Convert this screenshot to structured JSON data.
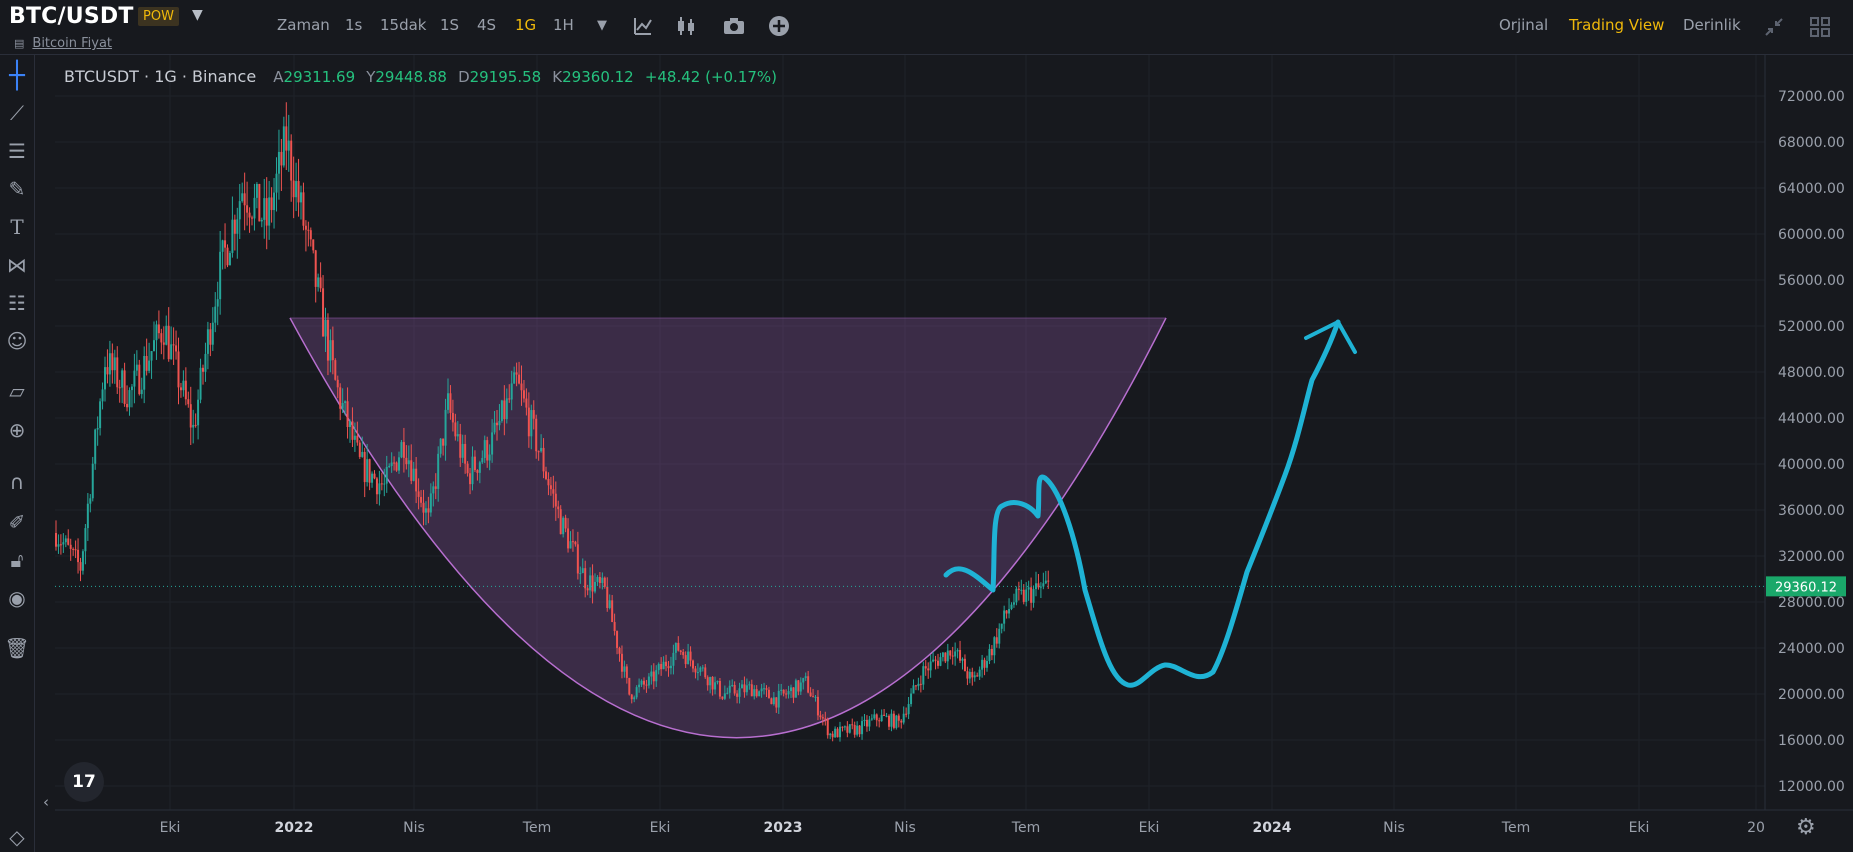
{
  "header": {
    "pair": "BTC/USDT",
    "badge": "POW",
    "subtitle": "Bitcoin Fiyat"
  },
  "intervals": [
    {
      "label": "Zaman",
      "active": false
    },
    {
      "label": "1s",
      "active": false
    },
    {
      "label": "15dak",
      "active": false
    },
    {
      "label": "1S",
      "active": false
    },
    {
      "label": "4S",
      "active": false
    },
    {
      "label": "1G",
      "active": true
    },
    {
      "label": "1H",
      "active": false
    }
  ],
  "toolbar_icons": [
    "chevron-down-icon",
    "indicators-icon",
    "candles-icon",
    "camera-icon",
    "add-icon"
  ],
  "views": [
    {
      "label": "Orjinal",
      "active": false
    },
    {
      "label": "Trading View",
      "active": true
    },
    {
      "label": "Derinlik",
      "active": false
    }
  ],
  "left_tools": [
    "crosshair-icon",
    "trendline-icon",
    "fib-icon",
    "brush-icon",
    "text-icon",
    "pattern-icon",
    "prediction-icon",
    "emoji-icon",
    "ruler-icon",
    "zoom-in-icon",
    "magnet-icon",
    "lock-draw-icon",
    "lock-icon",
    "eye-icon",
    "trash-icon"
  ],
  "legend": {
    "symbol": "BTCUSDT · 1G · Binance",
    "open_key": "A",
    "open": "29311.69",
    "high_key": "Y",
    "high": "29448.88",
    "low_key": "D",
    "low": "29195.58",
    "close_key": "K",
    "close": "29360.12",
    "change": "+48.42 (+0.17%)"
  },
  "logo": "17",
  "colors": {
    "accent": "#f0b90b",
    "up": "#26a69a",
    "down": "#ef5350",
    "drawing": "#1fb3d5",
    "pattern": "#9b5cb4",
    "price_tag": "#1aa86a"
  },
  "chart_data": {
    "type": "candlestick",
    "y_ticks": [
      "72000.00",
      "68000.00",
      "64000.00",
      "60000.00",
      "56000.00",
      "52000.00",
      "48000.00",
      "44000.00",
      "40000.00",
      "36000.00",
      "32000.00",
      "28000.00",
      "24000.00",
      "20000.00",
      "16000.00",
      "12000.00"
    ],
    "x_ticks": [
      "Eki",
      "2022",
      "Nis",
      "Tem",
      "Eki",
      "2023",
      "Nis",
      "Tem",
      "Eki",
      "2024",
      "Nis",
      "Tem",
      "Eki",
      "20"
    ],
    "ylim": [
      10000,
      75000
    ],
    "last_price": 29360.12,
    "last_price_label": "29360.12",
    "price_anchors": [
      [
        0,
        34000
      ],
      [
        5,
        31000
      ],
      [
        10,
        49000
      ],
      [
        15,
        46000
      ],
      [
        22,
        52000
      ],
      [
        28,
        43000
      ],
      [
        33,
        56000
      ],
      [
        38,
        64000
      ],
      [
        43,
        61000
      ],
      [
        47,
        68000
      ],
      [
        52,
        58000
      ],
      [
        57,
        47000
      ],
      [
        62,
        40000
      ],
      [
        67,
        38000
      ],
      [
        71,
        42000
      ],
      [
        76,
        35000
      ],
      [
        80,
        45000
      ],
      [
        84,
        39000
      ],
      [
        89,
        42000
      ],
      [
        94,
        47000
      ],
      [
        98,
        42000
      ],
      [
        103,
        35000
      ],
      [
        108,
        30000
      ],
      [
        112,
        29000
      ],
      [
        117,
        20000
      ],
      [
        121,
        21000
      ],
      [
        127,
        24000
      ],
      [
        132,
        22000
      ],
      [
        136,
        20000
      ],
      [
        142,
        20500
      ],
      [
        147,
        19500
      ],
      [
        153,
        21000
      ],
      [
        158,
        16500
      ],
      [
        164,
        17000
      ],
      [
        168,
        18000
      ],
      [
        172,
        17500
      ],
      [
        177,
        22000
      ],
      [
        183,
        24000
      ],
      [
        187,
        21000
      ],
      [
        191,
        24000
      ],
      [
        195,
        28000
      ],
      [
        200,
        29000
      ],
      [
        203,
        29500
      ]
    ],
    "pattern_top": 52700,
    "pattern_bottom": 16200
  }
}
